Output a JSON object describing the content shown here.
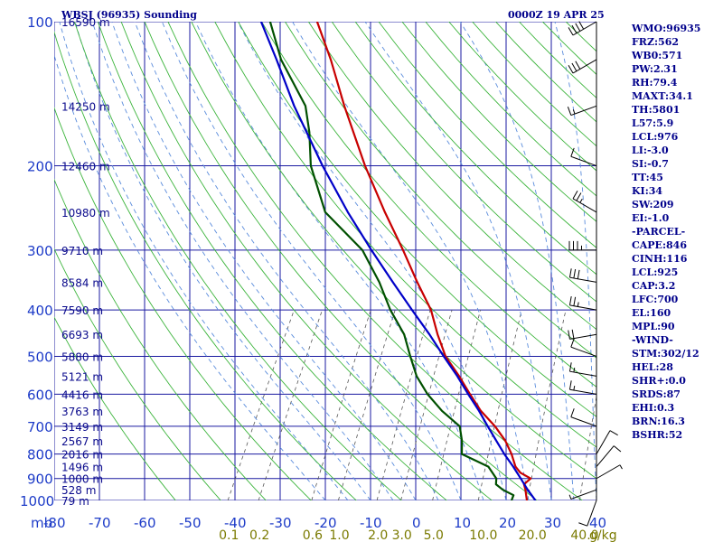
{
  "header": {
    "station": "WBSJ (96935) Sounding",
    "time": "0000Z 19 APR 25"
  },
  "chart_data": {
    "type": "line",
    "title": "WBSJ (96935) Sounding",
    "subtitle": "0000Z 19 APR 25",
    "xlabel": "",
    "ylabel": "mb",
    "xlim": [
      -80,
      40
    ],
    "ylim": [
      1000,
      100
    ],
    "y_scale": "log",
    "grid": true,
    "pressure_ticks": [
      100,
      200,
      300,
      400,
      500,
      600,
      700,
      800,
      900,
      1000
    ],
    "pressure_tick_labels": [
      "100",
      "200",
      "300",
      "400",
      "500",
      "600",
      "700",
      "800",
      "900",
      "1000"
    ],
    "y_unit_label": "mb",
    "temp_ticks": [
      -80,
      -70,
      -60,
      -50,
      -40,
      -30,
      -20,
      -10,
      0,
      10,
      20,
      30,
      40
    ],
    "temp_tick_labels": [
      "-80",
      "-70",
      "-60",
      "-50",
      "-40",
      "-30",
      "-20",
      "-10",
      "0",
      "10",
      "20",
      "30",
      "40"
    ],
    "height_labels": [
      {
        "p": 100,
        "text": "16590 m"
      },
      {
        "p": 150,
        "text": "14250 m"
      },
      {
        "p": 200,
        "text": "12460 m"
      },
      {
        "p": 250,
        "text": "10980 m"
      },
      {
        "p": 300,
        "text": "9710 m"
      },
      {
        "p": 350,
        "text": "8584 m"
      },
      {
        "p": 400,
        "text": "7590 m"
      },
      {
        "p": 450,
        "text": "6693 m"
      },
      {
        "p": 500,
        "text": "5880 m"
      },
      {
        "p": 550,
        "text": "5121 m"
      },
      {
        "p": 600,
        "text": "4416 m"
      },
      {
        "p": 650,
        "text": "3763 m"
      },
      {
        "p": 700,
        "text": "3149 m"
      },
      {
        "p": 750,
        "text": "2567 m"
      },
      {
        "p": 800,
        "text": "2016 m"
      },
      {
        "p": 850,
        "text": "1496 m"
      },
      {
        "p": 900,
        "text": "1000 m"
      },
      {
        "p": 950,
        "text": "528 m"
      },
      {
        "p": 1000,
        "text": "79 m"
      }
    ],
    "mixing_ratio_labels": [
      {
        "w": 0.1,
        "text": "0.1"
      },
      {
        "w": 0.2,
        "text": "0.2"
      },
      {
        "w": 0.6,
        "text": "0.6"
      },
      {
        "w": 1.0,
        "text": "1.0"
      },
      {
        "w": 2.0,
        "text": "2.0"
      },
      {
        "w": 3.0,
        "text": "3.0"
      },
      {
        "w": 5.0,
        "text": "5.0"
      },
      {
        "w": 10.0,
        "text": "10.0"
      },
      {
        "w": 20.0,
        "text": "20.0"
      },
      {
        "w": 40.0,
        "text": "40.0"
      }
    ],
    "mixing_ratio_unit": "g/kg",
    "series": [
      {
        "name": "",
        "color": "#c80000",
        "values": [
          [
            1000,
            24.6
          ],
          [
            975,
            23.8
          ],
          [
            950,
            23.0
          ],
          [
            925,
            22.0
          ],
          [
            900,
            22.8
          ],
          [
            875,
            19.8
          ],
          [
            850,
            18.0
          ],
          [
            800,
            15.6
          ],
          [
            750,
            12.6
          ],
          [
            700,
            8.6
          ],
          [
            650,
            3.6
          ],
          [
            600,
            -0.8
          ],
          [
            550,
            -5.4
          ],
          [
            500,
            -10.8
          ],
          [
            450,
            -15.2
          ],
          [
            400,
            -19.6
          ],
          [
            350,
            -26.0
          ],
          [
            300,
            -33.0
          ],
          [
            250,
            -41.6
          ],
          [
            200,
            -51.6
          ],
          [
            150,
            -63.4
          ],
          [
            120,
            -72.0
          ],
          [
            100,
            -79.6
          ]
        ]
      },
      {
        "name": "",
        "color": "#005000",
        "values": [
          [
            1000,
            21.2
          ],
          [
            975,
            21.0
          ],
          [
            950,
            18.0
          ],
          [
            925,
            15.8
          ],
          [
            900,
            15.2
          ],
          [
            850,
            12.0
          ],
          [
            800,
            4.6
          ],
          [
            750,
            3.0
          ],
          [
            700,
            0.8
          ],
          [
            650,
            -5.0
          ],
          [
            600,
            -10.2
          ],
          [
            550,
            -14.8
          ],
          [
            500,
            -18.6
          ],
          [
            450,
            -22.6
          ],
          [
            400,
            -28.6
          ],
          [
            350,
            -34.4
          ],
          [
            300,
            -42.0
          ],
          [
            250,
            -54.8
          ],
          [
            200,
            -63.6
          ],
          [
            170,
            -68.0
          ],
          [
            150,
            -72.0
          ],
          [
            120,
            -83.0
          ],
          [
            100,
            -90.0
          ]
        ]
      },
      {
        "name": "",
        "color": "#0000c8",
        "values": [
          [
            1000,
            26.5
          ],
          [
            950,
            23.5
          ],
          [
            900,
            20.6
          ],
          [
            850,
            17.5
          ],
          [
            800,
            14.0
          ],
          [
            750,
            10.6
          ],
          [
            700,
            7.0
          ],
          [
            650,
            3.2
          ],
          [
            600,
            -1.2
          ],
          [
            550,
            -5.8
          ],
          [
            500,
            -11.2
          ],
          [
            450,
            -17.0
          ],
          [
            400,
            -23.8
          ],
          [
            350,
            -31.4
          ],
          [
            300,
            -40.0
          ],
          [
            250,
            -49.8
          ],
          [
            200,
            -61.0
          ],
          [
            150,
            -74.5
          ],
          [
            120,
            -84.0
          ],
          [
            100,
            -92.0
          ]
        ]
      }
    ],
    "wind_barbs": [
      {
        "p": 1000,
        "dir": 200,
        "spd": 10
      },
      {
        "p": 950,
        "dir": 250,
        "spd": 5
      },
      {
        "p": 900,
        "dir": 60,
        "spd": 5
      },
      {
        "p": 850,
        "dir": 40,
        "spd": 10
      },
      {
        "p": 800,
        "dir": 30,
        "spd": 10
      },
      {
        "p": 700,
        "dir": 290,
        "spd": 10
      },
      {
        "p": 600,
        "dir": 280,
        "spd": 15
      },
      {
        "p": 550,
        "dir": 280,
        "spd": 15
      },
      {
        "p": 500,
        "dir": 290,
        "spd": 10
      },
      {
        "p": 450,
        "dir": 260,
        "spd": 20
      },
      {
        "p": 400,
        "dir": 280,
        "spd": 25
      },
      {
        "p": 350,
        "dir": 280,
        "spd": 30
      },
      {
        "p": 300,
        "dir": 270,
        "spd": 35
      },
      {
        "p": 250,
        "dir": 300,
        "spd": 25
      },
      {
        "p": 200,
        "dir": 290,
        "spd": 10
      },
      {
        "p": 150,
        "dir": 250,
        "spd": 15
      },
      {
        "p": 120,
        "dir": 240,
        "spd": 30
      },
      {
        "p": 100,
        "dir": 240,
        "spd": 40
      }
    ]
  },
  "indices": [
    "WMO:96935",
    "FRZ:562",
    "WB0:571",
    "PW:2.31",
    "RH:79.4",
    "MAXT:34.1",
    "TH:5801",
    "L57:5.9",
    "LCL:976",
    "LI:-3.0",
    "SI:-0.7",
    "TT:45",
    "KI:34",
    "SW:209",
    "EI:-1.0",
    "-PARCEL-",
    "CAPE:846",
    "CINH:116",
    "LCL:925",
    "CAP:3.2",
    "LFC:700",
    "EL:160",
    "MPL:90",
    "-WIND-",
    "STM:302/12",
    "HEL:28",
    "SHR+:0.0",
    "SRDS:87",
    "EHI:0.3",
    "BRN:16.3",
    "BSHR:52"
  ],
  "colors": {
    "isobar": "#1a1aa0",
    "isotherm": "#1a1aa0",
    "dry_adiabat": "#3cb43c",
    "moist_adiabat": "#5a8cdc",
    "mixing_ratio": "#555555",
    "text": "#00008b",
    "tick_text": "#1e3cc8"
  }
}
